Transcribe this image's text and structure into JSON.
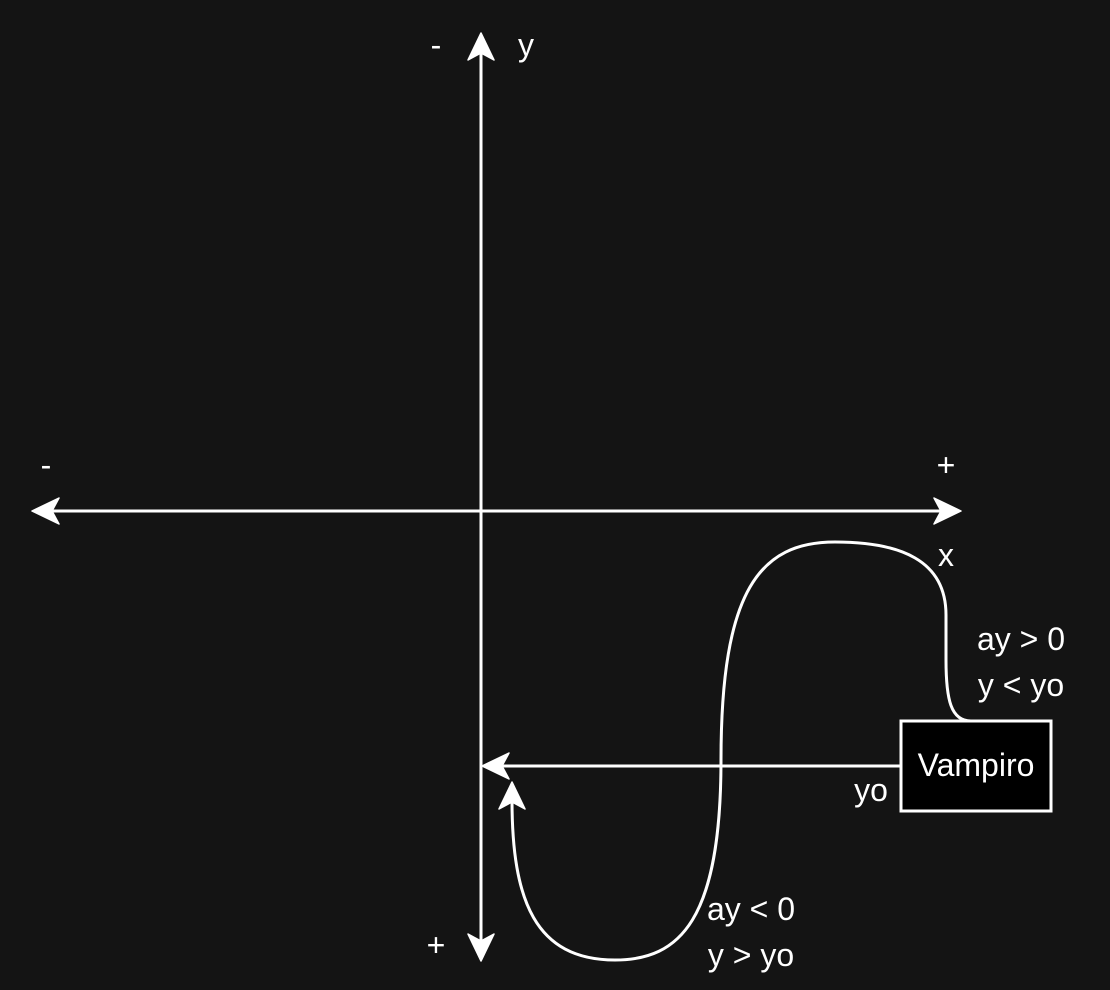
{
  "diagram": {
    "y_axis": {
      "label": "y",
      "negative_sign": "-",
      "positive_sign": "+"
    },
    "x_axis": {
      "label": "x",
      "negative_sign": "-",
      "positive_sign": "+"
    },
    "node": {
      "label": "Vampiro"
    },
    "reference_line_label": "yo",
    "upper_case": {
      "line1": "ay > 0",
      "line2": "y < yo"
    },
    "lower_case": {
      "line1": "ay < 0",
      "line2": "y > yo"
    }
  },
  "colors": {
    "background": "#141414",
    "foreground": "#ffffff",
    "node_fill": "#000000"
  }
}
